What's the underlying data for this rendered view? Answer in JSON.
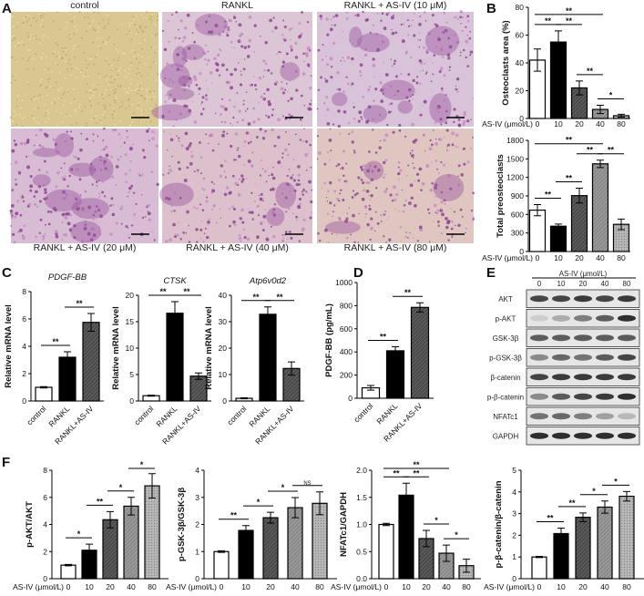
{
  "panel_labels": [
    "A",
    "B",
    "C",
    "D",
    "E",
    "F"
  ],
  "panel_a": {
    "images": [
      {
        "label": "control",
        "tint": "#d8c790"
      },
      {
        "label": "RANKL",
        "tint": "#dcc6d6"
      },
      {
        "label": "RANKL + AS-IV (10 μM)",
        "tint": "#d9c3d8"
      },
      {
        "label": "RANKL + AS-IV (20 μM)",
        "tint": "#d7bcd3"
      },
      {
        "label": "RANKL + AS-IV (40 μM)",
        "tint": "#dcc0cc"
      },
      {
        "label": "RANKL + AS-IV (80 μM)",
        "tint": "#e0c6c0"
      }
    ]
  },
  "panel_e": {
    "header": "AS-IV (μmol/L)",
    "lanes": [
      "0",
      "10",
      "20",
      "40",
      "80"
    ],
    "rows": [
      "AKT",
      "p-AKT",
      "GSK-3β",
      "p-GSK-3β",
      "β-catenin",
      "p-β-catenin",
      "NFATc1",
      "GAPDH"
    ]
  },
  "chart_data": [
    {
      "panel": "B",
      "type": "bar",
      "title": "",
      "ylabel": "Osteoclasts area (%)",
      "xlabel": "AS-IV (μmol/L)",
      "categories": [
        "0",
        "10",
        "20",
        "40",
        "80"
      ],
      "values": [
        42,
        55,
        22,
        6.5,
        2
      ],
      "errors": [
        8,
        8,
        5,
        3,
        1
      ],
      "ylim": [
        0,
        80
      ],
      "tick_labels": [
        "0",
        "20",
        "40",
        "60",
        "80"
      ],
      "ticks": [
        0,
        20,
        40,
        60,
        80
      ],
      "fills": [
        "white",
        "black",
        "dark-hatch",
        "mid-hatch",
        "light-dots"
      ],
      "significance": [
        {
          "from": 0,
          "to": 1,
          "label": "**"
        },
        {
          "from": 1,
          "to": 2,
          "label": "**"
        },
        {
          "from": 2,
          "to": 3,
          "label": "**"
        },
        {
          "from": 3,
          "to": 4,
          "label": "*"
        },
        {
          "from": 0,
          "to": 3,
          "label": "**"
        }
      ]
    },
    {
      "panel": "B",
      "type": "bar",
      "title": "",
      "ylabel": "Total preosteoclasts",
      "xlabel": "AS-IV (μmol/L)",
      "categories": [
        "0",
        "10",
        "20",
        "40",
        "80"
      ],
      "values": [
        670,
        410,
        905,
        1420,
        440
      ],
      "errors": [
        90,
        35,
        120,
        60,
        85
      ],
      "ylim": [
        0,
        1800
      ],
      "tick_labels": [
        "0",
        "300",
        "600",
        "900",
        "1200",
        "1500",
        "1800"
      ],
      "ticks": [
        0,
        300,
        600,
        900,
        1200,
        1500,
        1800
      ],
      "fills": [
        "white",
        "black",
        "dark-hatch",
        "mid-hatch",
        "light-dots"
      ],
      "significance": [
        {
          "from": 0,
          "to": 1,
          "label": "**"
        },
        {
          "from": 1,
          "to": 2,
          "label": "**"
        },
        {
          "from": 2,
          "to": 3,
          "label": "**"
        },
        {
          "from": 3,
          "to": 4,
          "label": "**"
        },
        {
          "from": 0,
          "to": 3,
          "label": "**"
        }
      ]
    },
    {
      "panel": "C",
      "type": "bar",
      "title": "PDGF-BB",
      "ylabel": "Relative mRNA level",
      "xlabel": "",
      "categories": [
        "control",
        "RANKL",
        "RANKL+AS-IV"
      ],
      "values": [
        1,
        3.2,
        5.75
      ],
      "errors": [
        0.05,
        0.4,
        0.65
      ],
      "ylim": [
        0,
        8
      ],
      "tick_labels": [
        "0",
        "2",
        "4",
        "6",
        "8"
      ],
      "ticks": [
        0,
        2,
        4,
        6,
        8
      ],
      "fills": [
        "white",
        "black",
        "dark-hatch"
      ],
      "significance": [
        {
          "from": 0,
          "to": 1,
          "label": "**"
        },
        {
          "from": 1,
          "to": 2,
          "label": "**"
        }
      ]
    },
    {
      "panel": "C",
      "type": "bar",
      "title": "CTSK",
      "ylabel": "Relative mRNA level",
      "xlabel": "",
      "categories": [
        "control",
        "RANKL",
        "RANKL+AS-IV"
      ],
      "values": [
        1,
        16.6,
        4.7
      ],
      "errors": [
        0.1,
        2.2,
        0.6
      ],
      "ylim": [
        0,
        20
      ],
      "tick_labels": [
        "0",
        "5",
        "10",
        "15",
        "20"
      ],
      "ticks": [
        0,
        5,
        10,
        15,
        20
      ],
      "fills": [
        "white",
        "black",
        "dark-hatch"
      ],
      "significance": [
        {
          "from": 0,
          "to": 1,
          "label": "**"
        },
        {
          "from": 1,
          "to": 2,
          "label": "**"
        }
      ]
    },
    {
      "panel": "C",
      "type": "bar",
      "title": "Atp6v0d2",
      "ylabel": "Relative mRNA level",
      "xlabel": "",
      "categories": [
        "control",
        "RANKL",
        "RANKL+AS-IV"
      ],
      "values": [
        1,
        32.8,
        12.3
      ],
      "errors": [
        0.2,
        2.8,
        2.5
      ],
      "ylim": [
        0,
        40
      ],
      "tick_labels": [
        "0",
        "10",
        "20",
        "30",
        "40"
      ],
      "ticks": [
        0,
        10,
        20,
        30,
        40
      ],
      "fills": [
        "white",
        "black",
        "dark-hatch"
      ],
      "significance": [
        {
          "from": 0,
          "to": 1,
          "label": "**"
        },
        {
          "from": 1,
          "to": 2,
          "label": "**"
        }
      ]
    },
    {
      "panel": "D",
      "type": "bar",
      "title": "",
      "ylabel": "PDGF-BB (pg/mL)",
      "xlabel": "",
      "categories": [
        "control",
        "RANKL",
        "RANKL+AS-IV"
      ],
      "values": [
        90,
        410,
        785
      ],
      "errors": [
        20,
        35,
        40
      ],
      "ylim": [
        0,
        1000
      ],
      "tick_labels": [
        "0",
        "200",
        "400",
        "600",
        "800",
        "1000"
      ],
      "ticks": [
        0,
        200,
        400,
        600,
        800,
        1000
      ],
      "fills": [
        "white",
        "black",
        "dark-hatch"
      ],
      "significance": [
        {
          "from": 0,
          "to": 1,
          "label": "**"
        },
        {
          "from": 1,
          "to": 2,
          "label": "**"
        }
      ]
    },
    {
      "panel": "F",
      "type": "bar",
      "title": "",
      "ylabel": "p-AKT/AKT",
      "xlabel": "AS-IV (μmol/L)",
      "categories": [
        "0",
        "10",
        "20",
        "40",
        "80"
      ],
      "values": [
        1,
        2.1,
        4.35,
        5.35,
        6.85
      ],
      "errors": [
        0.05,
        0.45,
        0.6,
        0.65,
        0.9
      ],
      "ylim": [
        0,
        8
      ],
      "tick_labels": [
        "0",
        "2",
        "4",
        "6",
        "8"
      ],
      "ticks": [
        0,
        2,
        4,
        6,
        8
      ],
      "fills": [
        "white",
        "black",
        "dark-hatch",
        "mid-hatch",
        "light-dots"
      ],
      "significance": [
        {
          "from": 0,
          "to": 1,
          "label": "*"
        },
        {
          "from": 1,
          "to": 2,
          "label": "**"
        },
        {
          "from": 2,
          "to": 3,
          "label": "*"
        },
        {
          "from": 3,
          "to": 4,
          "label": "*"
        }
      ]
    },
    {
      "panel": "F",
      "type": "bar",
      "title": "",
      "ylabel": "p-GSK-3β/GSK-3β",
      "xlabel": "AS-IV (μmol/L)",
      "categories": [
        "0",
        "10",
        "20",
        "40",
        "80"
      ],
      "values": [
        1,
        1.78,
        2.25,
        2.62,
        2.78
      ],
      "errors": [
        0.03,
        0.18,
        0.2,
        0.37,
        0.42
      ],
      "ylim": [
        0,
        4
      ],
      "tick_labels": [
        "0",
        "1",
        "2",
        "3",
        "4"
      ],
      "ticks": [
        0,
        1,
        2,
        3,
        4
      ],
      "fills": [
        "white",
        "black",
        "dark-hatch",
        "mid-hatch",
        "light-dots"
      ],
      "significance": [
        {
          "from": 0,
          "to": 1,
          "label": "**"
        },
        {
          "from": 1,
          "to": 2,
          "label": "*"
        },
        {
          "from": 2,
          "to": 3,
          "label": "*"
        },
        {
          "from": 3,
          "to": 4,
          "label": "NS"
        }
      ]
    },
    {
      "panel": "F",
      "type": "bar",
      "title": "",
      "ylabel": "NFATc1/GAPDH",
      "xlabel": "AS-IV (μmol/L)",
      "categories": [
        "0",
        "10",
        "20",
        "40",
        "80"
      ],
      "values": [
        1,
        1.54,
        0.74,
        0.47,
        0.24
      ],
      "errors": [
        0.02,
        0.22,
        0.15,
        0.15,
        0.12
      ],
      "ylim": [
        0,
        2
      ],
      "tick_labels": [
        "0.0",
        "0.5",
        "1.0",
        "1.5",
        "2.0"
      ],
      "ticks": [
        0,
        0.5,
        1,
        1.5,
        2
      ],
      "fills": [
        "white",
        "black",
        "dark-hatch",
        "mid-hatch",
        "light-dots"
      ],
      "significance": [
        {
          "from": 0,
          "to": 1,
          "label": "**"
        },
        {
          "from": 1,
          "to": 2,
          "label": "**"
        },
        {
          "from": 2,
          "to": 3,
          "label": "*"
        },
        {
          "from": 3,
          "to": 4,
          "label": "*"
        },
        {
          "from": 0,
          "to": 3,
          "label": "**"
        }
      ]
    },
    {
      "panel": "F",
      "type": "bar",
      "title": "",
      "ylabel": "p-β-catenin/β-catenin",
      "xlabel": "AS-IV (μmol/L)",
      "categories": [
        "0",
        "10",
        "20",
        "40",
        "80"
      ],
      "values": [
        1,
        2.08,
        2.83,
        3.3,
        3.8
      ],
      "errors": [
        0.03,
        0.25,
        0.2,
        0.28,
        0.22
      ],
      "ylim": [
        0,
        5
      ],
      "tick_labels": [
        "0",
        "1",
        "2",
        "3",
        "4",
        "5"
      ],
      "ticks": [
        0,
        1,
        2,
        3,
        4,
        5
      ],
      "fills": [
        "white",
        "black",
        "dark-hatch",
        "mid-hatch",
        "light-dots"
      ],
      "significance": [
        {
          "from": 0,
          "to": 1,
          "label": "**"
        },
        {
          "from": 1,
          "to": 2,
          "label": "**"
        },
        {
          "from": 2,
          "to": 3,
          "label": "*"
        },
        {
          "from": 3,
          "to": 4,
          "label": "*"
        }
      ]
    }
  ]
}
